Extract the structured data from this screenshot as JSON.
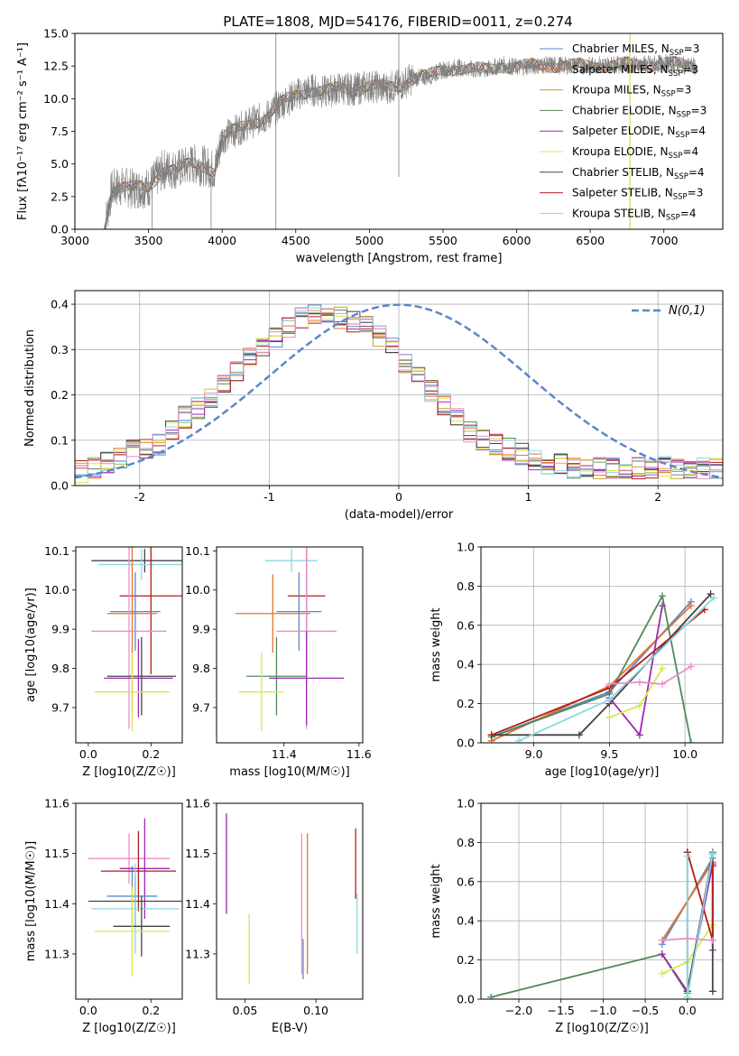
{
  "figure_title": "PLATE=1808, MJD=54176, FIBERID=0011, z=0.274",
  "chart_data": [
    {
      "id": "spectrum",
      "type": "line",
      "title": "PLATE=1808, MJD=54176, FIBERID=0011, z=0.274",
      "xlabel": "wavelength [Angstrom, rest frame]",
      "ylabel": "Flux [fλ10⁻¹⁷ erg cm⁻² s⁻¹ A⁻¹]",
      "xlim": [
        3000,
        7400
      ],
      "ylim": [
        0,
        15
      ],
      "xticks": [
        3000,
        3500,
        4000,
        4500,
        5000,
        5500,
        6000,
        6500,
        7000
      ],
      "yticks": [
        0.0,
        2.5,
        5.0,
        7.5,
        10.0,
        12.5,
        15.0
      ],
      "grid": false,
      "legend_position": "right",
      "x": [
        3200,
        3250,
        3300,
        3400,
        3500,
        3550,
        3600,
        3700,
        3800,
        3900,
        3950,
        4000,
        4100,
        4200,
        4300,
        4400,
        4500,
        4600,
        4700,
        4800,
        4900,
        5000,
        5100,
        5200,
        5300,
        5400,
        5500,
        5600,
        5700,
        5800,
        5900,
        6000,
        6200,
        6400,
        6600,
        6800,
        7000,
        7200
      ],
      "values": [
        0.0,
        3.0,
        3.3,
        3.1,
        3.2,
        3.9,
        4.6,
        4.6,
        5.0,
        4.8,
        4.5,
        7.0,
        7.6,
        8.2,
        8.6,
        9.6,
        10.3,
        10.7,
        10.5,
        10.8,
        10.7,
        11.0,
        10.8,
        11.0,
        11.6,
        11.7,
        12.2,
        12.4,
        12.2,
        12.2,
        12.6,
        12.4,
        12.6,
        12.5,
        12.6,
        12.6,
        12.7,
        12.5
      ],
      "series": [
        {
          "name": "Chabrier MILES, N_SSP=3",
          "color": "#5b86c9"
        },
        {
          "name": "Salpeter MILES, N_SSP=3",
          "color": "#e6722c"
        },
        {
          "name": "Kroupa MILES, N_SSP=3",
          "color": "#c9a227"
        },
        {
          "name": "Chabrier ELODIE, N_SSP=3",
          "color": "#4f8a5a"
        },
        {
          "name": "Salpeter ELODIE, N_SSP=4",
          "color": "#9b2ab0"
        },
        {
          "name": "Kroupa ELODIE, N_SSP=4",
          "color": "#d8e84a"
        },
        {
          "name": "Chabrier STELIB, N_SSP=4",
          "color": "#444444"
        },
        {
          "name": "Salpeter STELIB, N_SSP=3",
          "color": "#b01c1c"
        },
        {
          "name": "Kroupa STELIB, N_SSP=4",
          "color": "#8fd6e2"
        }
      ]
    },
    {
      "id": "residuals",
      "type": "line",
      "xlabel": "(data-model)/error",
      "ylabel": "Normed distribution",
      "xlim": [
        -2.5,
        2.5
      ],
      "ylim": [
        0,
        0.43
      ],
      "xticks": [
        -2,
        -1,
        0,
        1,
        2
      ],
      "yticks": [
        0.0,
        0.1,
        0.2,
        0.3,
        0.4
      ],
      "grid": true,
      "legend": "N(0,1)",
      "legend_position": "top-right",
      "bin_width": 0.1,
      "histogram": [
        0.03,
        0.04,
        0.05,
        0.06,
        0.08,
        0.08,
        0.09,
        0.12,
        0.15,
        0.17,
        0.19,
        0.22,
        0.25,
        0.28,
        0.31,
        0.33,
        0.35,
        0.37,
        0.38,
        0.38,
        0.37,
        0.36,
        0.35,
        0.33,
        0.31,
        0.27,
        0.24,
        0.21,
        0.18,
        0.15,
        0.12,
        0.1,
        0.09,
        0.08,
        0.07,
        0.06,
        0.05,
        0.05,
        0.04,
        0.04,
        0.04,
        0.04,
        0.04,
        0.04,
        0.04,
        0.04,
        0.04,
        0.04,
        0.04,
        0.04
      ],
      "histogram_start": -2.5
    },
    {
      "id": "age-vs-Z",
      "type": "scatter",
      "xlabel": "Z [log10(Z/Z☉)]",
      "ylabel": "age  [log10(age/yr)]",
      "xlim": [
        -0.04,
        0.3
      ],
      "ylim": [
        9.61,
        10.11
      ],
      "xticks": [
        0.0,
        0.2
      ],
      "yticks": [
        9.7,
        9.8,
        9.9,
        10.0,
        10.1
      ],
      "points": [
        {
          "x": 0.18,
          "y": 10.075,
          "xerr": 0.17,
          "yerr": 0.03,
          "color": "#444444"
        },
        {
          "x": 0.17,
          "y": 10.065,
          "xerr": 0.14,
          "yerr": 0.04,
          "color": "#8fd6e2"
        },
        {
          "x": 0.2,
          "y": 9.985,
          "xerr": 0.1,
          "yerr": 0.2,
          "color": "#b01c1c"
        },
        {
          "x": 0.15,
          "y": 9.945,
          "xerr": 0.08,
          "yerr": 0.1,
          "color": "#5b86c9"
        },
        {
          "x": 0.14,
          "y": 9.94,
          "xerr": 0.08,
          "yerr": 0.25,
          "color": "#e6722c"
        },
        {
          "x": 0.13,
          "y": 9.895,
          "xerr": 0.12,
          "yerr": 0.25,
          "color": "#e891c8"
        },
        {
          "x": 0.17,
          "y": 9.78,
          "xerr": 0.11,
          "yerr": 0.1,
          "color": "#444444"
        },
        {
          "x": 0.16,
          "y": 9.775,
          "xerr": 0.11,
          "yerr": 0.1,
          "color": "#9b2ab0"
        },
        {
          "x": 0.14,
          "y": 9.74,
          "xerr": 0.12,
          "yerr": 0.1,
          "color": "#d8e84a"
        }
      ]
    },
    {
      "id": "age-vs-mass",
      "type": "scatter",
      "xlabel": "mass [log10(M/M☉)]",
      "xlim": [
        11.22,
        11.61
      ],
      "ylim": [
        9.61,
        10.11
      ],
      "xticks": [
        11.4,
        11.6
      ],
      "yticks": [
        9.7,
        9.8,
        9.9,
        10.0,
        10.1
      ],
      "points": [
        {
          "x": 11.42,
          "y": 10.075,
          "xerr": 0.07,
          "yerr": 0.03,
          "color": "#8fd6e2"
        },
        {
          "x": 11.46,
          "y": 9.985,
          "xerr": 0.05,
          "yerr": 0.2,
          "color": "#b01c1c"
        },
        {
          "x": 11.37,
          "y": 9.94,
          "xerr": 0.1,
          "yerr": 0.1,
          "color": "#e6722c"
        },
        {
          "x": 11.44,
          "y": 9.945,
          "xerr": 0.06,
          "yerr": 0.1,
          "color": "#5b86c9"
        },
        {
          "x": 11.46,
          "y": 9.895,
          "xerr": 0.08,
          "yerr": 0.25,
          "color": "#e891c8"
        },
        {
          "x": 11.38,
          "y": 9.78,
          "xerr": 0.08,
          "yerr": 0.1,
          "color": "#4f8a5a"
        },
        {
          "x": 11.46,
          "y": 9.775,
          "xerr": 0.1,
          "yerr": 0.12,
          "color": "#9b2ab0"
        },
        {
          "x": 11.34,
          "y": 9.74,
          "xerr": 0.06,
          "yerr": 0.1,
          "color": "#d8e84a"
        }
      ]
    },
    {
      "id": "weight-vs-age",
      "type": "line",
      "xlabel": "age  [log10(age/yr)]",
      "ylabel": "mass weight",
      "xlim": [
        8.65,
        10.25
      ],
      "ylim": [
        0,
        1
      ],
      "xticks": [
        9.0,
        9.5,
        10.0
      ],
      "yticks": [
        0.0,
        0.2,
        0.4,
        0.6,
        0.8,
        1.0
      ],
      "grid": true,
      "series": [
        {
          "color": "#5b86c9",
          "x": [
            8.72,
            9.5,
            10.04
          ],
          "y": [
            0.03,
            0.26,
            0.72
          ]
        },
        {
          "color": "#e6722c",
          "x": [
            8.72,
            9.5,
            10.04
          ],
          "y": [
            0.01,
            0.29,
            0.7
          ]
        },
        {
          "color": "#4f8a5a",
          "x": [
            8.72,
            9.5,
            9.85,
            10.04
          ],
          "y": [
            0.03,
            0.25,
            0.75,
            0.0
          ]
        },
        {
          "color": "#9b2ab0",
          "x": [
            9.5,
            9.7,
            9.85
          ],
          "y": [
            0.23,
            0.04,
            0.7
          ]
        },
        {
          "color": "#d8e84a",
          "x": [
            9.5,
            9.7,
            9.85
          ],
          "y": [
            0.13,
            0.19,
            0.38
          ]
        },
        {
          "color": "#444444",
          "x": [
            8.72,
            9.3,
            9.5,
            10.17
          ],
          "y": [
            0.04,
            0.04,
            0.2,
            0.76
          ]
        },
        {
          "color": "#b01c1c",
          "x": [
            8.72,
            9.5,
            10.13
          ],
          "y": [
            0.04,
            0.28,
            0.68
          ]
        },
        {
          "color": "#8fd6e2",
          "x": [
            8.9,
            9.5,
            10.19
          ],
          "y": [
            0.01,
            0.22,
            0.74
          ]
        },
        {
          "color": "#e891c8",
          "x": [
            9.5,
            9.7,
            9.85,
            10.04
          ],
          "y": [
            0.3,
            0.31,
            0.3,
            0.39
          ]
        }
      ]
    },
    {
      "id": "mass-vs-Z",
      "type": "scatter",
      "xlabel": "Z [log10(Z/Z☉)]",
      "ylabel": "mass [log10(M/M☉)]",
      "xlim": [
        -0.04,
        0.3
      ],
      "ylim": [
        11.21,
        11.6
      ],
      "xticks": [
        0.0,
        0.2
      ],
      "yticks": [
        11.3,
        11.4,
        11.5,
        11.6
      ],
      "points": [
        {
          "x": 0.13,
          "y": 11.49,
          "xerr": 0.13,
          "yerr": 0.05,
          "color": "#e891c8"
        },
        {
          "x": 0.16,
          "y": 11.465,
          "xerr": 0.12,
          "yerr": 0.08,
          "color": "#b01c1c"
        },
        {
          "x": 0.18,
          "y": 11.47,
          "xerr": 0.08,
          "yerr": 0.1,
          "color": "#9b2ab0"
        },
        {
          "x": 0.14,
          "y": 11.415,
          "xerr": 0.08,
          "yerr": 0.06,
          "color": "#5b86c9"
        },
        {
          "x": 0.15,
          "y": 11.405,
          "xerr": 0.15,
          "yerr": 0.05,
          "color": "#444444"
        },
        {
          "x": 0.15,
          "y": 11.39,
          "xerr": 0.14,
          "yerr": 0.09,
          "color": "#8fd6e2"
        },
        {
          "x": 0.17,
          "y": 11.355,
          "xerr": 0.09,
          "yerr": 0.06,
          "color": "#444444"
        },
        {
          "x": 0.14,
          "y": 11.345,
          "xerr": 0.12,
          "yerr": 0.09,
          "color": "#d8e84a"
        }
      ]
    },
    {
      "id": "mass-vs-EBV",
      "type": "scatter",
      "xlabel": "E(B-V)",
      "xlim": [
        0.03,
        0.133
      ],
      "ylim": [
        11.21,
        11.6
      ],
      "xticks": [
        0.05,
        0.1
      ],
      "yticks": [
        11.3,
        11.4,
        11.5,
        11.6
      ],
      "points": [
        {
          "x": 0.037,
          "y": 11.48,
          "yerr": 0.1,
          "color": "#9b2ab0"
        },
        {
          "x": 0.053,
          "y": 11.31,
          "yerr": 0.07,
          "color": "#d8e84a"
        },
        {
          "x": 0.09,
          "y": 11.4,
          "yerr": 0.14,
          "color": "#e891c8"
        },
        {
          "x": 0.091,
          "y": 11.29,
          "yerr": 0.04,
          "color": "#5b86c9"
        },
        {
          "x": 0.094,
          "y": 11.4,
          "yerr": 0.14,
          "color": "#e6722c"
        },
        {
          "x": 0.128,
          "y": 11.48,
          "yerr": 0.07,
          "color": "#b01c1c"
        },
        {
          "x": 0.129,
          "y": 11.36,
          "yerr": 0.06,
          "color": "#8fd6e2"
        }
      ]
    },
    {
      "id": "weight-vs-Z",
      "type": "line",
      "xlabel": "Z [log10(Z/Z☉)]",
      "ylabel": "mass weight",
      "xlim": [
        -2.45,
        0.42
      ],
      "ylim": [
        0,
        1
      ],
      "xticks": [
        -2.0,
        -1.5,
        -1.0,
        -0.5,
        0.0
      ],
      "yticks": [
        0.0,
        0.2,
        0.4,
        0.6,
        0.8,
        1.0
      ],
      "grid": true,
      "series": [
        {
          "color": "#4f8a5a",
          "x": [
            -2.33,
            -0.3,
            0.0,
            0.3
          ],
          "y": [
            0.01,
            0.23,
            0.03,
            0.75
          ]
        },
        {
          "color": "#5b86c9",
          "x": [
            -0.3,
            0.3
          ],
          "y": [
            0.28,
            0.72
          ]
        },
        {
          "color": "#e6722c",
          "x": [
            -0.3,
            0.3
          ],
          "y": [
            0.3,
            0.7
          ]
        },
        {
          "color": "#9b2ab0",
          "x": [
            -0.3,
            0.0,
            0.3,
            0.3
          ],
          "y": [
            0.23,
            0.04,
            0.69,
            0.25
          ]
        },
        {
          "color": "#d8e84a",
          "x": [
            -0.3,
            0.0,
            0.3
          ],
          "y": [
            0.13,
            0.19,
            0.38
          ]
        },
        {
          "color": "#444444",
          "x": [
            0.0,
            0.0,
            0.3,
            0.3
          ],
          "y": [
            0.75,
            0.04,
            0.74,
            0.04
          ]
        },
        {
          "color": "#b01c1c",
          "x": [
            0.0,
            0.3,
            0.3
          ],
          "y": [
            0.75,
            0.3,
            0.68
          ]
        },
        {
          "color": "#8fd6e2",
          "x": [
            0.0,
            0.0,
            0.3
          ],
          "y": [
            0.73,
            0.01,
            0.74
          ]
        },
        {
          "color": "#e891c8",
          "x": [
            -0.3,
            0.0,
            0.3
          ],
          "y": [
            0.3,
            0.31,
            0.3
          ]
        }
      ]
    }
  ]
}
